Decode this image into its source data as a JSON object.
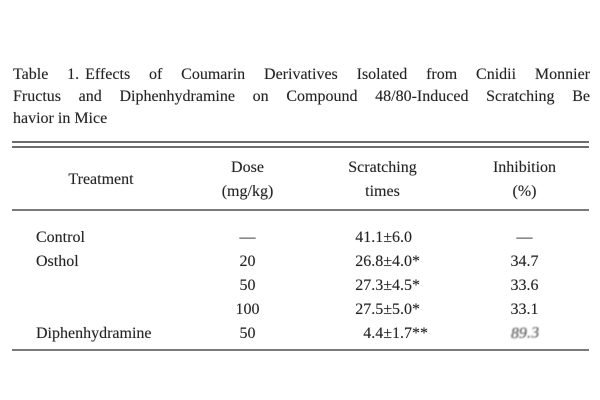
{
  "page": {
    "background": "#ffffff",
    "text_color": "#242424",
    "rule_color": "#7a7a7a"
  },
  "caption": {
    "label": "Table 1.",
    "line1_rest": "Effects of Coumarin Derivatives Isolated from Cnidii Monnier",
    "line2": "Fructus and Diphenhydramine on Compound 48/80-Induced Scratching Be",
    "line3": "havior in Mice"
  },
  "table": {
    "col_headers": [
      {
        "line1": "Treatment",
        "line2": ""
      },
      {
        "line1": "Dose",
        "line2": "(mg/kg)"
      },
      {
        "line1": "Scratching",
        "line2": "times"
      },
      {
        "line1": "Inhibition",
        "line2": "(%)"
      }
    ],
    "rows": [
      {
        "treatment": "Control",
        "dose": "—",
        "scratching": "41.1±6.0",
        "stars": "",
        "inhibition": "—"
      },
      {
        "treatment": "Osthol",
        "dose": "20",
        "scratching": "26.8±4.0",
        "stars": "*",
        "inhibition": "34.7"
      },
      {
        "treatment": "",
        "dose": "50",
        "scratching": "27.3±4.5",
        "stars": "*",
        "inhibition": "33.6"
      },
      {
        "treatment": "",
        "dose": "100",
        "scratching": "27.5±5.0",
        "stars": "*",
        "inhibition": "33.1"
      },
      {
        "treatment": "Diphenhydramine",
        "dose": "50",
        "scratching": "4.4±1.7",
        "stars": "**",
        "inhibition": "89.3"
      }
    ],
    "notes": {
      "last_inhibition_legibility": "smudged-in-scan"
    }
  },
  "chart_data": {
    "type": "table",
    "title": "Table 1. Effects of Coumarin Derivatives Isolated from Cnidii Monnier Fructus and Diphenhydramine on Compound 48/80-Induced Scratching Behavior in Mice",
    "columns": [
      "Treatment",
      "Dose (mg/kg)",
      "Scratching times",
      "Inhibition (%)"
    ],
    "rows": [
      [
        "Control",
        null,
        "41.1±6.0",
        null
      ],
      [
        "Osthol",
        20,
        "26.8±4.0*",
        34.7
      ],
      [
        "Osthol",
        50,
        "27.3±4.5*",
        33.6
      ],
      [
        "Osthol",
        100,
        "27.5±5.0*",
        33.1
      ],
      [
        "Diphenhydramine",
        50,
        "4.4±1.7**",
        89.3
      ]
    ]
  }
}
